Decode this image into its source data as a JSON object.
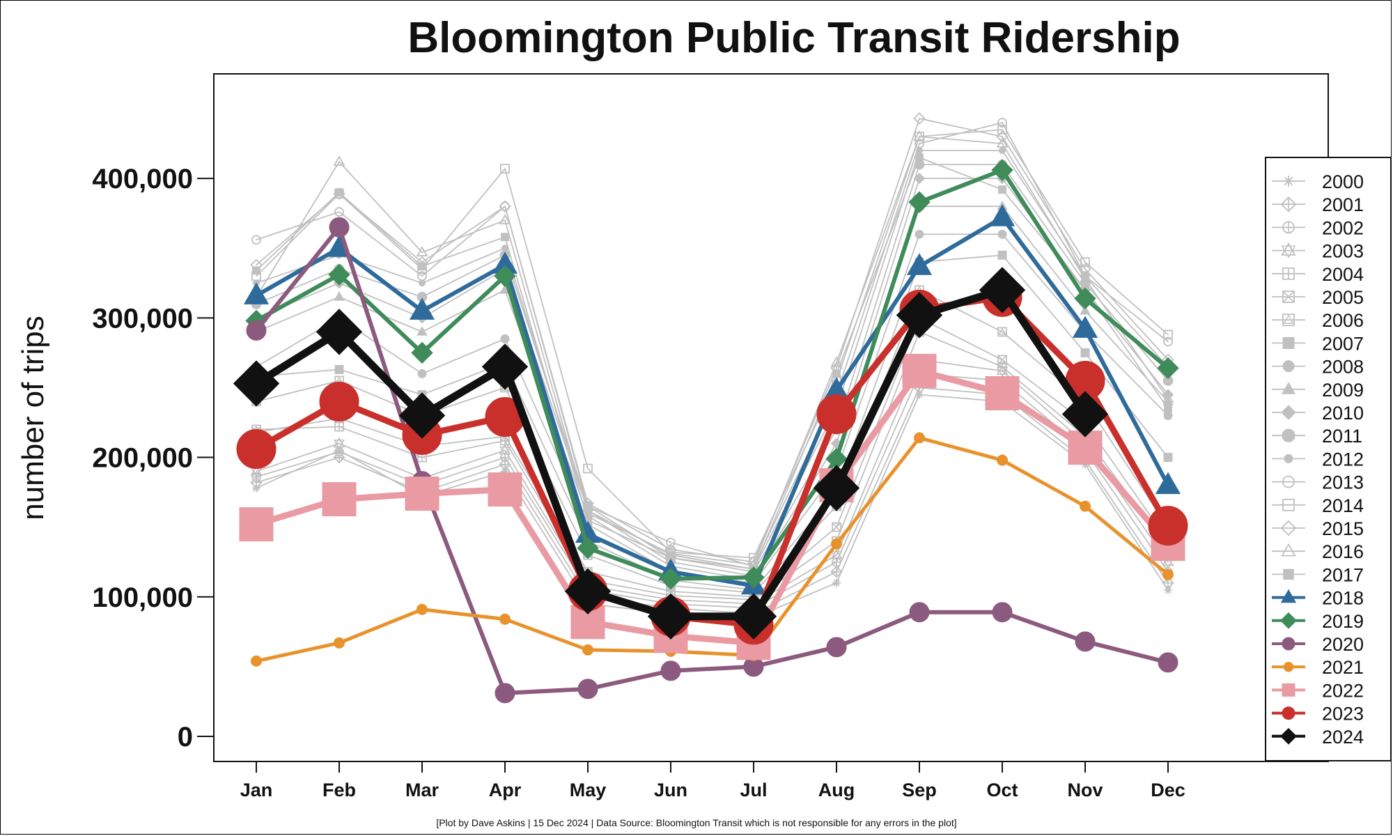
{
  "chart_data": {
    "type": "line",
    "title": "Bloomington Public Transit Ridership",
    "xlabel": "",
    "ylabel": "number of trips",
    "ylim": [
      -18000,
      475000
    ],
    "yticks": [
      0,
      100000,
      200000,
      300000,
      400000
    ],
    "ytick_labels": [
      "0",
      "100,000",
      "200,000",
      "300,000",
      "400,000"
    ],
    "categories": [
      "Jan",
      "Feb",
      "Mar",
      "Apr",
      "May",
      "Jun",
      "Jul",
      "Aug",
      "Sep",
      "Oct",
      "Nov",
      "Dec"
    ],
    "legend_position": "right",
    "caption": "[Plot by Dave Askins | 15 Dec 2024 | Data Source: Bloomington Transit which is not responsible for any errors in the plot]",
    "series": [
      {
        "name": "2000",
        "color": "#c0c0c0",
        "marker": "asterisk",
        "values": [
          178000,
          205000,
          172000,
          190000,
          95000,
          88000,
          85000,
          110000,
          245000,
          240000,
          195000,
          105000
        ]
      },
      {
        "name": "2001",
        "color": "#c0c0c0",
        "marker": "diamond-plus",
        "values": [
          182000,
          200000,
          175000,
          195000,
          100000,
          92000,
          88000,
          118000,
          250000,
          245000,
          198000,
          110000
        ]
      },
      {
        "name": "2002",
        "color": "#c0c0c0",
        "marker": "circle-plus",
        "values": [
          186000,
          204000,
          180000,
          200000,
          105000,
          95000,
          92000,
          125000,
          260000,
          255000,
          205000,
          118000
        ]
      },
      {
        "name": "2003",
        "color": "#c0c0c0",
        "marker": "star-triangle",
        "values": [
          190000,
          210000,
          185000,
          205000,
          108000,
          98000,
          95000,
          130000,
          270000,
          262000,
          210000,
          125000
        ]
      },
      {
        "name": "2004",
        "color": "#c0c0c0",
        "marker": "square-plus",
        "values": [
          220000,
          222000,
          200000,
          212000,
          112000,
          101000,
          98000,
          140000,
          290000,
          265000,
          215000,
          135000
        ]
      },
      {
        "name": "2005",
        "color": "#c0c0c0",
        "marker": "square-x",
        "values": [
          218000,
          228000,
          208000,
          215000,
          118000,
          104000,
          100000,
          150000,
          300000,
          270000,
          225000,
          140000
        ]
      },
      {
        "name": "2006",
        "color": "#c0c0c0",
        "marker": "square-triangle",
        "values": [
          240000,
          255000,
          230000,
          250000,
          130000,
          108000,
          103000,
          165000,
          320000,
          290000,
          240000,
          150000
        ]
      },
      {
        "name": "2007",
        "color": "#c0c0c0",
        "marker": "square",
        "values": [
          258000,
          263000,
          245000,
          268000,
          140000,
          112000,
          105000,
          175000,
          340000,
          345000,
          275000,
          200000
        ]
      },
      {
        "name": "2008",
        "color": "#c0c0c0",
        "marker": "circle",
        "values": [
          265000,
          300000,
          260000,
          285000,
          152000,
          118000,
          110000,
          190000,
          360000,
          360000,
          290000,
          230000
        ]
      },
      {
        "name": "2009",
        "color": "#c0c0c0",
        "marker": "triangle",
        "values": [
          290000,
          315000,
          290000,
          320000,
          158000,
          122000,
          112000,
          200000,
          380000,
          380000,
          305000,
          240000
        ]
      },
      {
        "name": "2010",
        "color": "#c0c0c0",
        "marker": "diamond",
        "values": [
          300000,
          325000,
          300000,
          335000,
          162000,
          125000,
          115000,
          210000,
          400000,
          400000,
          320000,
          245000
        ]
      },
      {
        "name": "2011",
        "color": "#c0c0c0",
        "marker": "circle-large",
        "values": [
          310000,
          335000,
          315000,
          345000,
          165000,
          128000,
          118000,
          220000,
          410000,
          410000,
          325000,
          255000
        ]
      },
      {
        "name": "2012",
        "color": "#c0c0c0",
        "marker": "circle-small",
        "values": [
          325000,
          345000,
          325000,
          350000,
          162000,
          130000,
          120000,
          235000,
          420000,
          420000,
          330000,
          265000
        ]
      },
      {
        "name": "2013",
        "color": "#c0c0c0",
        "marker": "circle-open",
        "values": [
          356000,
          376000,
          330000,
          380000,
          165000,
          139000,
          122000,
          245000,
          425000,
          440000,
          330000,
          283000
        ]
      },
      {
        "name": "2014",
        "color": "#c0c0c0",
        "marker": "square-open",
        "values": [
          330000,
          389000,
          335000,
          407000,
          192000,
          132000,
          128000,
          255000,
          430000,
          435000,
          340000,
          288000
        ]
      },
      {
        "name": "2015",
        "color": "#c0c0c0",
        "marker": "diamond-open",
        "values": [
          338000,
          389000,
          340000,
          380000,
          167000,
          134000,
          125000,
          264000,
          443000,
          430000,
          335000,
          270000
        ]
      },
      {
        "name": "2016",
        "color": "#c0c0c0",
        "marker": "triangle-open",
        "values": [
          315000,
          412000,
          347000,
          370000,
          160000,
          131000,
          123000,
          268000,
          430000,
          425000,
          328000,
          242000
        ]
      },
      {
        "name": "2017",
        "color": "#c0c0c0",
        "marker": "square-filled",
        "values": [
          334000,
          390000,
          337000,
          358000,
          155000,
          128000,
          120000,
          260000,
          415000,
          392000,
          320000,
          235000
        ]
      },
      {
        "name": "2018",
        "color": "#2f6b9a",
        "marker": "triangle",
        "values": [
          316000,
          350000,
          305000,
          338000,
          145000,
          118000,
          108000,
          248000,
          337000,
          372000,
          292000,
          180000
        ]
      },
      {
        "name": "2019",
        "color": "#3f8b5a",
        "marker": "diamond",
        "values": [
          298000,
          331000,
          275000,
          330000,
          135000,
          113000,
          114000,
          199000,
          383000,
          406000,
          314000,
          264000
        ]
      },
      {
        "name": "2020",
        "color": "#8b5a7e",
        "marker": "circle",
        "values": [
          291000,
          365000,
          183000,
          31000,
          34000,
          47000,
          50000,
          64000,
          89000,
          89000,
          68000,
          53000
        ]
      },
      {
        "name": "2021",
        "color": "#e8922c",
        "marker": "circle-small",
        "values": [
          54000,
          67000,
          91000,
          84000,
          62000,
          61000,
          58000,
          138000,
          214000,
          198000,
          165000,
          116000
        ]
      },
      {
        "name": "2022",
        "color": "#e99aa2",
        "marker": "square",
        "values": [
          152000,
          170000,
          174000,
          177000,
          82000,
          72000,
          67000,
          180000,
          262000,
          246000,
          207000,
          138000
        ]
      },
      {
        "name": "2023",
        "color": "#c9302c",
        "marker": "circle",
        "values": [
          206000,
          240000,
          216000,
          229000,
          104000,
          86000,
          80000,
          231000,
          306000,
          315000,
          255000,
          151000
        ]
      },
      {
        "name": "2024",
        "color": "#111111",
        "marker": "diamond",
        "values": [
          253000,
          290000,
          230000,
          265000,
          104000,
          86000,
          86000,
          178000,
          302000,
          320000,
          231000,
          null
        ]
      }
    ]
  }
}
